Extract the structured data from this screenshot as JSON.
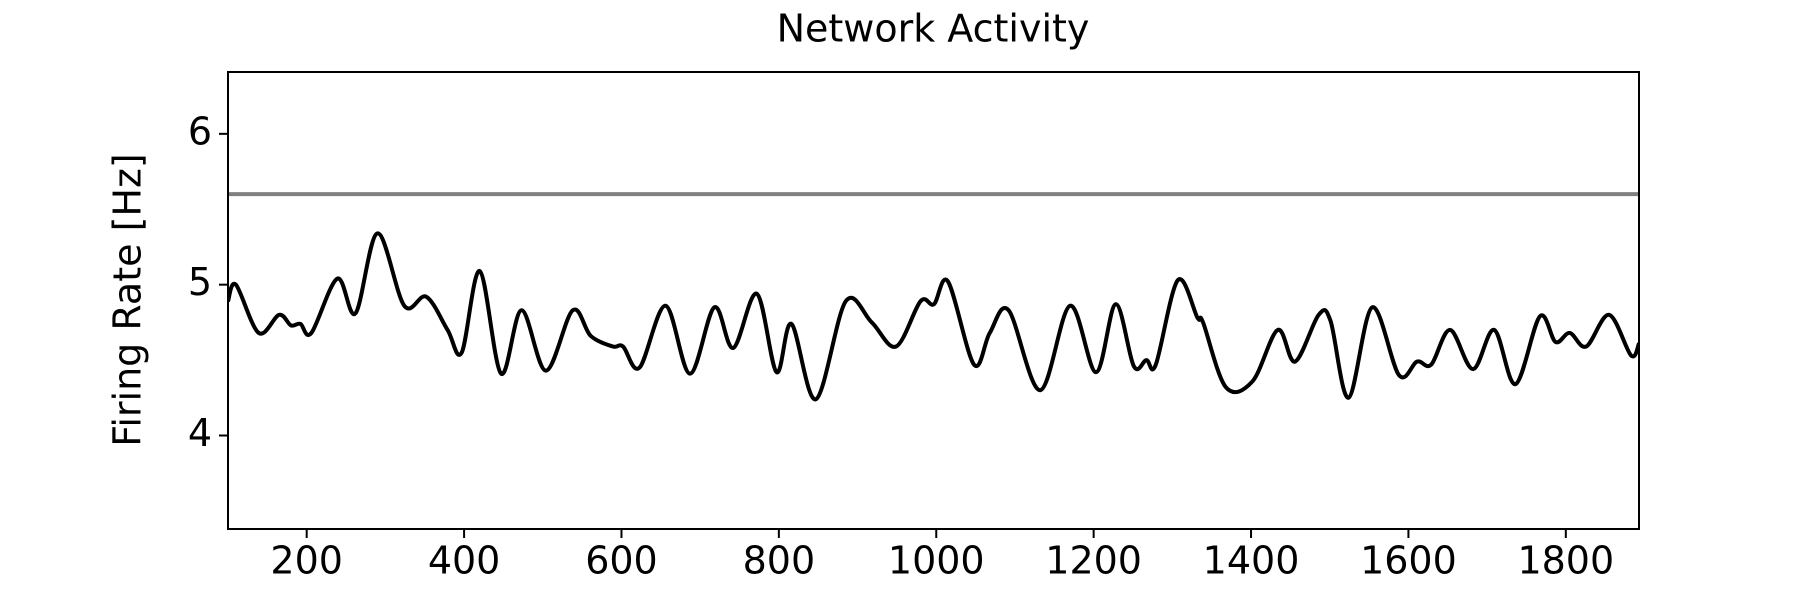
{
  "chart_data": {
    "type": "line",
    "title": "Network Activity",
    "y_label": "Firing Rate [Hz]",
    "x": [
      100,
      110,
      139,
      165,
      180,
      192,
      206,
      239,
      262,
      290,
      324,
      352,
      379,
      397,
      420,
      447,
      473,
      504,
      538,
      561,
      589,
      602,
      623,
      656,
      687,
      718,
      742,
      772,
      797,
      816,
      847,
      885,
      918,
      949,
      980,
      997,
      1015,
      1048,
      1068,
      1092,
      1132,
      1170,
      1203,
      1228,
      1251,
      1267,
      1279,
      1307,
      1332,
      1339,
      1368,
      1402,
      1434,
      1456,
      1486,
      1501,
      1524,
      1554,
      1588,
      1611,
      1629,
      1653,
      1682,
      1709,
      1736,
      1767,
      1787,
      1805,
      1826,
      1855,
      1883,
      1893
    ],
    "series": [
      {
        "color": "#000000",
        "values": [
          4.89,
          5.0,
          4.68,
          4.8,
          4.73,
          4.74,
          4.68,
          5.04,
          4.81,
          5.34,
          4.86,
          4.92,
          4.7,
          4.55,
          5.09,
          4.41,
          4.83,
          4.43,
          4.83,
          4.66,
          4.59,
          4.59,
          4.45,
          4.86,
          4.41,
          4.85,
          4.58,
          4.94,
          4.42,
          4.74,
          4.24,
          4.89,
          4.75,
          4.59,
          4.89,
          4.87,
          5.02,
          4.47,
          4.68,
          4.83,
          4.3,
          4.86,
          4.42,
          4.87,
          4.46,
          4.5,
          4.47,
          5.03,
          4.78,
          4.75,
          4.32,
          4.36,
          4.7,
          4.49,
          4.8,
          4.76,
          4.25,
          4.85,
          4.4,
          4.49,
          4.47,
          4.7,
          4.44,
          4.7,
          4.34,
          4.79,
          4.62,
          4.68,
          4.59,
          4.8,
          4.53,
          4.61
        ]
      }
    ],
    "hline": {
      "value": 5.6,
      "color": "#808080"
    },
    "xlim": [
      100,
      1893
    ],
    "ylim": [
      3.38,
      6.41
    ],
    "xticks": [
      200,
      400,
      600,
      800,
      1000,
      1200,
      1400,
      1600,
      1800
    ],
    "yticks": [
      4,
      5,
      6
    ]
  }
}
